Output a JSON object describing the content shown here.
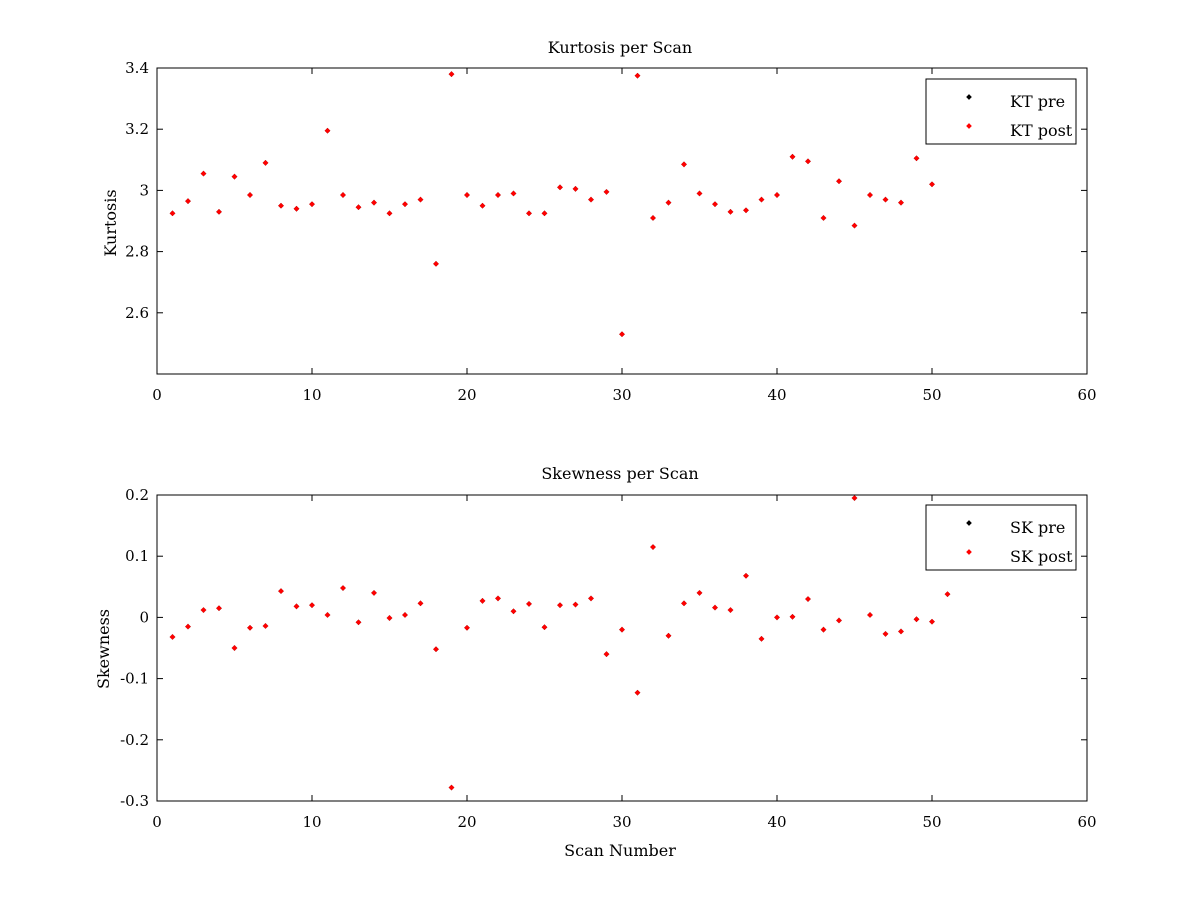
{
  "chart_data": [
    {
      "type": "scatter",
      "title": "Kurtosis per Scan",
      "xlabel": "",
      "ylabel": "Kurtosis",
      "xlim": [
        0,
        60
      ],
      "ylim": [
        2.4,
        3.4
      ],
      "xticks": [
        0,
        10,
        20,
        30,
        40,
        50,
        60
      ],
      "yticks": [
        2.6,
        2.8,
        3.0,
        3.2,
        3.4
      ],
      "xtick_labels": [
        "0",
        "10",
        "20",
        "30",
        "40",
        "50",
        "60"
      ],
      "ytick_labels": [
        "2.6",
        "2.8",
        "3",
        "3.2",
        "3.4"
      ],
      "grid": false,
      "legend_position": "top-right",
      "series": [
        {
          "name": "KT pre",
          "color": "#000000",
          "x": [
            1,
            2,
            3,
            4,
            5,
            6,
            7,
            8,
            9,
            10,
            11,
            12,
            13,
            14,
            15,
            16,
            17,
            18,
            19,
            20,
            21,
            22,
            23,
            24,
            25,
            26,
            27,
            28,
            29,
            30,
            31,
            32,
            33,
            34,
            35,
            36,
            37,
            38,
            39,
            40,
            41,
            42,
            43,
            44,
            45,
            46,
            47,
            48,
            49,
            50
          ],
          "y": [
            2.925,
            2.965,
            3.055,
            2.93,
            3.045,
            2.985,
            3.09,
            2.95,
            2.94,
            2.955,
            3.195,
            2.985,
            2.945,
            2.96,
            2.925,
            2.955,
            2.97,
            2.76,
            3.38,
            2.985,
            2.95,
            2.985,
            2.99,
            2.925,
            2.925,
            3.01,
            3.005,
            2.97,
            2.995,
            2.53,
            3.375,
            2.91,
            2.96,
            3.085,
            2.99,
            2.955,
            2.93,
            2.935,
            2.97,
            2.985,
            3.11,
            3.095,
            2.91,
            3.03,
            2.885,
            2.985,
            2.97,
            2.96,
            3.105,
            3.02
          ]
        },
        {
          "name": "KT post",
          "color": "#ff0000",
          "x": [
            1,
            2,
            3,
            4,
            5,
            6,
            7,
            8,
            9,
            10,
            11,
            12,
            13,
            14,
            15,
            16,
            17,
            18,
            19,
            20,
            21,
            22,
            23,
            24,
            25,
            26,
            27,
            28,
            29,
            30,
            31,
            32,
            33,
            34,
            35,
            36,
            37,
            38,
            39,
            40,
            41,
            42,
            43,
            44,
            45,
            46,
            47,
            48,
            49,
            50
          ],
          "y": [
            2.925,
            2.965,
            3.055,
            2.93,
            3.045,
            2.985,
            3.09,
            2.95,
            2.94,
            2.955,
            3.195,
            2.985,
            2.945,
            2.96,
            2.925,
            2.955,
            2.97,
            2.76,
            3.38,
            2.985,
            2.95,
            2.985,
            2.99,
            2.925,
            2.925,
            3.01,
            3.005,
            2.97,
            2.995,
            2.53,
            3.375,
            2.91,
            2.96,
            3.085,
            2.99,
            2.955,
            2.93,
            2.935,
            2.97,
            2.985,
            3.11,
            3.095,
            2.91,
            3.03,
            2.885,
            2.985,
            2.97,
            2.96,
            3.105,
            3.02
          ]
        }
      ]
    },
    {
      "type": "scatter",
      "title": "Skewness per Scan",
      "xlabel": "Scan Number",
      "ylabel": "Skewness",
      "xlim": [
        0,
        60
      ],
      "ylim": [
        -0.3,
        0.2
      ],
      "xticks": [
        0,
        10,
        20,
        30,
        40,
        50,
        60
      ],
      "yticks": [
        -0.3,
        -0.2,
        -0.1,
        0,
        0.1,
        0.2
      ],
      "xtick_labels": [
        "0",
        "10",
        "20",
        "30",
        "40",
        "50",
        "60"
      ],
      "ytick_labels": [
        "-0.3",
        "-0.2",
        "-0.1",
        "0",
        "0.1",
        "0.2"
      ],
      "grid": false,
      "legend_position": "top-right",
      "series": [
        {
          "name": "SK pre",
          "color": "#000000",
          "x": [
            1,
            2,
            3,
            4,
            5,
            6,
            7,
            8,
            9,
            10,
            11,
            12,
            13,
            14,
            15,
            16,
            17,
            18,
            19,
            20,
            21,
            22,
            23,
            24,
            25,
            26,
            27,
            28,
            29,
            30,
            31,
            32,
            33,
            34,
            35,
            36,
            37,
            38,
            39,
            40,
            41,
            42,
            43,
            44,
            45,
            46,
            47,
            48,
            49,
            50,
            51
          ],
          "y": [
            -0.032,
            -0.015,
            0.012,
            0.015,
            -0.05,
            -0.017,
            -0.014,
            0.043,
            0.018,
            0.02,
            0.004,
            0.048,
            -0.008,
            0.04,
            -0.001,
            0.004,
            0.023,
            -0.052,
            -0.278,
            -0.017,
            0.027,
            0.031,
            0.01,
            0.022,
            -0.016,
            0.02,
            0.021,
            0.031,
            -0.06,
            -0.02,
            -0.123,
            0.115,
            -0.03,
            0.023,
            0.04,
            0.016,
            0.012,
            0.068,
            -0.035,
            0.0,
            0.001,
            0.03,
            -0.02,
            -0.005,
            0.195,
            0.004,
            -0.027,
            -0.023,
            -0.003,
            -0.007,
            0.038
          ]
        },
        {
          "name": "SK post",
          "color": "#ff0000",
          "x": [
            1,
            2,
            3,
            4,
            5,
            6,
            7,
            8,
            9,
            10,
            11,
            12,
            13,
            14,
            15,
            16,
            17,
            18,
            19,
            20,
            21,
            22,
            23,
            24,
            25,
            26,
            27,
            28,
            29,
            30,
            31,
            32,
            33,
            34,
            35,
            36,
            37,
            38,
            39,
            40,
            41,
            42,
            43,
            44,
            45,
            46,
            47,
            48,
            49,
            50,
            51
          ],
          "y": [
            -0.032,
            -0.015,
            0.012,
            0.015,
            -0.05,
            -0.017,
            -0.014,
            0.043,
            0.018,
            0.02,
            0.004,
            0.048,
            -0.008,
            0.04,
            -0.001,
            0.004,
            0.023,
            -0.052,
            -0.278,
            -0.017,
            0.027,
            0.031,
            0.01,
            0.022,
            -0.016,
            0.02,
            0.021,
            0.031,
            -0.06,
            -0.02,
            -0.123,
            0.115,
            -0.03,
            0.023,
            0.04,
            0.016,
            0.012,
            0.068,
            -0.035,
            0.0,
            0.001,
            0.03,
            -0.02,
            -0.005,
            0.195,
            0.004,
            -0.027,
            -0.023,
            -0.003,
            -0.007,
            0.038
          ]
        }
      ]
    }
  ]
}
